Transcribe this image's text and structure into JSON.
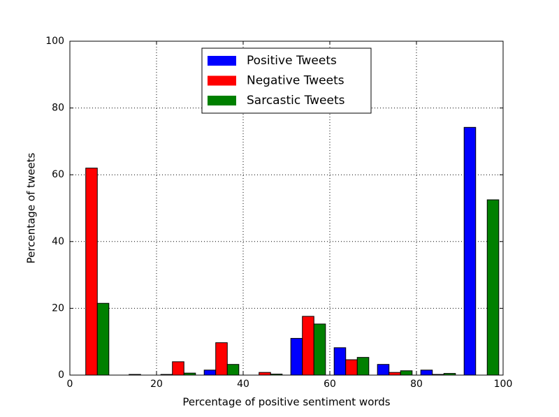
{
  "chart_data": {
    "type": "histogram",
    "xlabel": "Percentage of positive sentiment words",
    "ylabel": "Percentage of tweets",
    "bins": [
      0,
      10,
      20,
      30,
      40,
      50,
      60,
      70,
      80,
      90,
      100
    ],
    "series": [
      {
        "name": "Positive Tweets",
        "color": "#0000ff",
        "values": [
          0,
          0,
          0.2,
          1.5,
          0,
          11,
          8.2,
          3.2,
          1.5,
          74.2
        ]
      },
      {
        "name": "Negative Tweets",
        "color": "#ff0000",
        "values": [
          62,
          0.2,
          4,
          9.7,
          0.8,
          17.6,
          4.6,
          0.8,
          0.2,
          0
        ]
      },
      {
        "name": "Sarcastic Tweets",
        "color": "#008000",
        "values": [
          21.5,
          0,
          0.6,
          3.2,
          0.3,
          15.3,
          5.3,
          1.3,
          0.5,
          52.5
        ]
      }
    ],
    "xlim": [
      0,
      100
    ],
    "xticks": [
      0,
      20,
      40,
      60,
      80,
      100
    ],
    "ylim": [
      0,
      100
    ],
    "yticks": [
      0,
      20,
      40,
      60,
      80,
      100
    ],
    "grid": true,
    "legend": "upper center"
  }
}
